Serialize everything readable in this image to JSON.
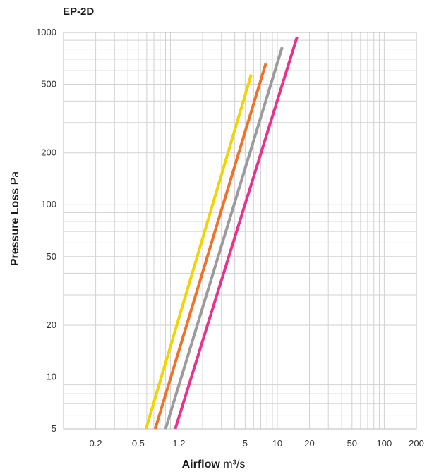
{
  "chart_data": {
    "type": "line",
    "title": "EP-2D",
    "xlabel_bold": "Airflow",
    "xlabel_unit": "m³/s",
    "ylabel_bold": "Pressure Loss",
    "ylabel_unit": "Pa",
    "x_scale": "log",
    "y_scale": "log",
    "xlim": [
      0.1,
      200
    ],
    "ylim": [
      5,
      1000
    ],
    "x_ticks": [
      0.2,
      0.5,
      1.2,
      5,
      10,
      20,
      50,
      100,
      200
    ],
    "x_tick_labels": [
      "0.2",
      "0.5",
      "1.2",
      "5",
      "10",
      "20",
      "50",
      "100",
      "200"
    ],
    "y_ticks": [
      5,
      10,
      20,
      50,
      100,
      200,
      500,
      1000
    ],
    "y_tick_labels": [
      "5",
      "10",
      "20",
      "50",
      "100",
      "200",
      "500",
      "1000"
    ],
    "grid": true,
    "series": [
      {
        "color": "#f2d400",
        "x": [
          0.59,
          5.7
        ],
        "y": [
          5,
          570
        ]
      },
      {
        "color": "#f07228",
        "x": [
          0.72,
          7.8
        ],
        "y": [
          5,
          660
        ]
      },
      {
        "color": "#9b9b9b",
        "x": [
          0.9,
          11.1
        ],
        "y": [
          5,
          820
        ]
      },
      {
        "color": "#e8338e",
        "x": [
          1.11,
          15.3
        ],
        "y": [
          5,
          940
        ]
      }
    ]
  }
}
